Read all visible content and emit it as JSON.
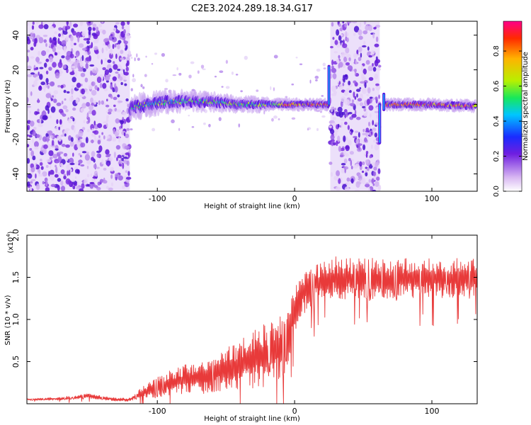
{
  "title": "C2E3.2024.289.18.34.G17",
  "chart_data": [
    {
      "type": "heatmap",
      "xlabel": "Height of straight line (km)",
      "ylabel": "Frequency (Hz)",
      "xlim": [
        -195,
        133
      ],
      "ylim": [
        -50,
        48
      ],
      "xticks": [
        -100,
        0,
        100
      ],
      "yticks": [
        -40,
        -20,
        0,
        20,
        40
      ],
      "colorbar": {
        "label": "Normalized spectral amplitude",
        "ticks": [
          "0.0",
          "0.2",
          "0.4",
          "0.6",
          "0.8"
        ],
        "range": [
          0,
          0.97
        ]
      },
      "noise_regions": [
        [
          -195,
          -120
        ],
        [
          26,
          62
        ]
      ],
      "signal_ridge": {
        "x": [
          -120,
          -100,
          -80,
          -60,
          -40,
          -20,
          0,
          20,
          26,
          66,
          80,
          100,
          132
        ],
        "y": [
          -2,
          1,
          2,
          1.5,
          0,
          0,
          0,
          0,
          0,
          0,
          0,
          0,
          -1
        ]
      },
      "spikes": [
        {
          "x": 25,
          "y_from": 0,
          "y_to": 22
        },
        {
          "x": 62,
          "y_from": 0,
          "y_to": -22
        },
        {
          "x": 65,
          "y_from": -3,
          "y_to": 6
        }
      ],
      "grid": false
    },
    {
      "type": "line",
      "xlabel": "Height of straight line (km)",
      "ylabel": "SNR (10 * v/v)",
      "multiplier": "(x10^4)",
      "multiplier_base": "(x10",
      "multiplier_exp": "4",
      "xlim": [
        -195,
        133
      ],
      "ylim": [
        0,
        2.0
      ],
      "xticks": [
        -100,
        0,
        100
      ],
      "yticks": [
        0.5,
        1.0,
        1.5,
        2.0
      ],
      "ytick_labels": [
        "0.5",
        "1.0",
        "1.5",
        "2.0"
      ],
      "series": [
        {
          "color": "#e83a3a",
          "x": [
            -195,
            -170,
            -150,
            -130,
            -120,
            -110,
            -100,
            -90,
            -80,
            -70,
            -60,
            -50,
            -40,
            -30,
            -20,
            -10,
            -5,
            0,
            5,
            10,
            20,
            30,
            40,
            50,
            60,
            70,
            80,
            90,
            100,
            110,
            120,
            133
          ],
          "y": [
            0.05,
            0.06,
            0.09,
            0.05,
            0.05,
            0.14,
            0.2,
            0.25,
            0.29,
            0.31,
            0.36,
            0.4,
            0.47,
            0.53,
            0.6,
            0.67,
            0.8,
            1.15,
            1.3,
            1.4,
            1.45,
            1.5,
            1.48,
            1.5,
            1.48,
            1.46,
            1.5,
            1.48,
            1.5,
            1.47,
            1.5,
            1.5
          ],
          "amplitude": [
            0.01,
            0.02,
            0.03,
            0.02,
            0.02,
            0.07,
            0.12,
            0.15,
            0.18,
            0.2,
            0.22,
            0.25,
            0.3,
            0.35,
            0.4,
            0.4,
            0.35,
            0.3,
            0.28,
            0.26,
            0.25,
            0.25,
            0.25,
            0.24,
            0.24,
            0.24,
            0.24,
            0.24,
            0.23,
            0.23,
            0.23,
            0.22
          ]
        }
      ],
      "grid": false
    }
  ]
}
